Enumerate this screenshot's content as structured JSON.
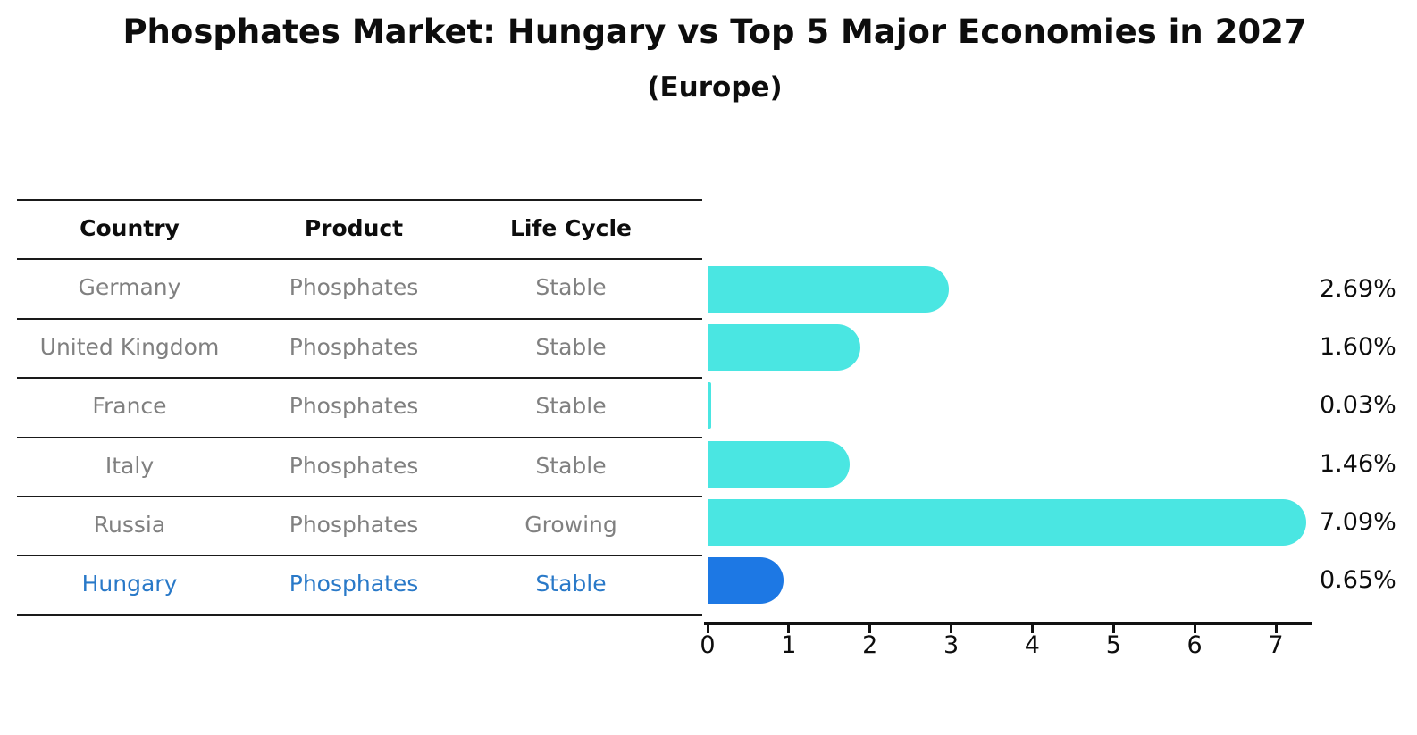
{
  "title": "Phosphates Market: Hungary vs Top 5 Major Economies in 2027",
  "subtitle": "(Europe)",
  "style": {
    "bar_color": "#4ae6e2",
    "highlight_bar_color": "#1d78e4",
    "highlight_text_color": "#2979c8",
    "row_text_color": "#808080",
    "header_text_color": "#0d0d0d",
    "axis_color": "#111111"
  },
  "table": {
    "headers": {
      "country": "Country",
      "product": "Product",
      "life_cycle": "Life Cycle"
    },
    "rows": [
      {
        "country": "Germany",
        "product": "Phosphates",
        "life_cycle": "Stable",
        "highlighted": false
      },
      {
        "country": "United Kingdom",
        "product": "Phosphates",
        "life_cycle": "Stable",
        "highlighted": false
      },
      {
        "country": "France",
        "product": "Phosphates",
        "life_cycle": "Stable",
        "highlighted": false
      },
      {
        "country": "Italy",
        "product": "Phosphates",
        "life_cycle": "Stable",
        "highlighted": false
      },
      {
        "country": "Russia",
        "product": "Phosphates",
        "life_cycle": "Growing",
        "highlighted": false
      },
      {
        "country": "Hungary",
        "product": "Phosphates",
        "life_cycle": "Stable",
        "highlighted": true
      }
    ]
  },
  "chart_data": {
    "type": "bar",
    "orientation": "horizontal",
    "title": "Phosphates Market: Hungary vs Top 5 Major Economies in 2027",
    "subtitle": "(Europe)",
    "categories": [
      "Germany",
      "United Kingdom",
      "France",
      "Italy",
      "Russia",
      "Hungary"
    ],
    "values": [
      2.69,
      1.6,
      0.03,
      1.46,
      7.09,
      0.65
    ],
    "value_labels": [
      "2.69%",
      "1.60%",
      "0.03%",
      "1.46%",
      "7.09%",
      "0.65%"
    ],
    "unit": "%",
    "xlabel": "",
    "ylabel": "",
    "xlim": [
      0,
      7.44
    ],
    "xticks": [
      0,
      1,
      2,
      3,
      4,
      5,
      6,
      7
    ],
    "grid": false,
    "legend": false,
    "highlight_category": "Hungary"
  }
}
